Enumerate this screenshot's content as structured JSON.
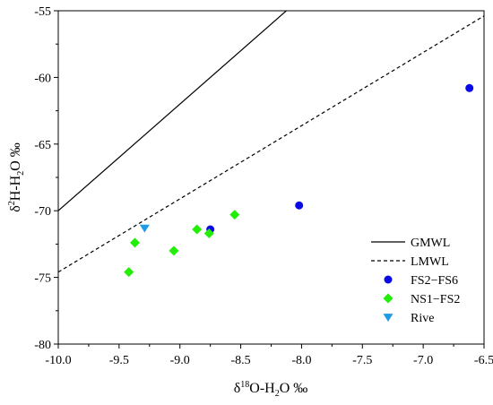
{
  "chart_data": {
    "type": "scatter",
    "xlim": [
      -10.0,
      -6.5
    ],
    "ylim": [
      -80,
      -55
    ],
    "x_ticks": [
      -10.0,
      -9.5,
      -9.0,
      -8.5,
      -8.0,
      -7.5,
      -7.0,
      -6.5
    ],
    "x_tick_labels": [
      "-10.0",
      "-9.5",
      "-9.0",
      "-8.5",
      "-8.0",
      "-7.5",
      "-7.0",
      "-6.5"
    ],
    "y_ticks": [
      -80,
      -75,
      -70,
      -65,
      -60,
      -55
    ],
    "y_tick_labels": [
      "-80",
      "-75",
      "-70",
      "-65",
      "-60",
      "-55"
    ],
    "xlabel": {
      "pre": "δ",
      "sup": "18",
      "post": "O-H",
      "sub": "2",
      "tail": "O ‰"
    },
    "ylabel": {
      "pre": "δ",
      "sup": "2",
      "post": "H-H",
      "sub": "2",
      "tail": "O ‰"
    },
    "grid": false,
    "legend_position": "bottom-right",
    "lines": [
      {
        "name": "GMWL",
        "style": "solid",
        "slope": 8,
        "intercept": 10,
        "color": "#000000"
      },
      {
        "name": "LMWL",
        "style": "dashed",
        "slope": 5.49,
        "intercept": -19.7,
        "color": "#000000"
      }
    ],
    "series": [
      {
        "name": "FS2−FS6",
        "marker": "circle",
        "color": "#0a0ae6",
        "points": [
          [
            -6.62,
            -60.8
          ],
          [
            -8.02,
            -69.6
          ],
          [
            -8.75,
            -71.4
          ]
        ]
      },
      {
        "name": "NS1−FS2",
        "marker": "diamond",
        "color": "#22ee0a",
        "points": [
          [
            -9.42,
            -74.6
          ],
          [
            -9.37,
            -72.4
          ],
          [
            -9.05,
            -73.0
          ],
          [
            -8.86,
            -71.4
          ],
          [
            -8.76,
            -71.7
          ],
          [
            -8.55,
            -70.3
          ]
        ]
      },
      {
        "name": "Rive",
        "marker": "triangle-down",
        "color": "#1e9be6",
        "points": [
          [
            -9.29,
            -71.3
          ]
        ]
      }
    ]
  }
}
